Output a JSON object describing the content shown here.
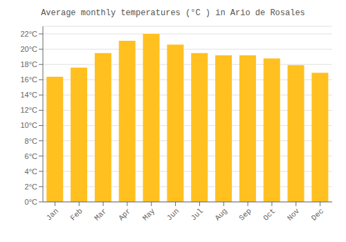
{
  "chart_data": {
    "type": "bar",
    "title": "Average monthly temperatures (°C ) in Ario de Rosales",
    "categories": [
      "Jan",
      "Feb",
      "Mar",
      "Apr",
      "May",
      "Jun",
      "Jul",
      "Aug",
      "Sep",
      "Oct",
      "Nov",
      "Dec"
    ],
    "values": [
      16.4,
      17.6,
      19.5,
      21.1,
      22.0,
      20.6,
      19.5,
      19.2,
      19.2,
      18.8,
      17.9,
      16.9
    ],
    "color": "#FFC020",
    "ylim": [
      0,
      23
    ],
    "yticks": [
      {
        "value": 0,
        "label": "0°C"
      },
      {
        "value": 2,
        "label": "2°C"
      },
      {
        "value": 4,
        "label": "4°C"
      },
      {
        "value": 6,
        "label": "6°C"
      },
      {
        "value": 8,
        "label": "8°C"
      },
      {
        "value": 10,
        "label": "10°C"
      },
      {
        "value": 12,
        "label": "12°C"
      },
      {
        "value": 14,
        "label": "14°C"
      },
      {
        "value": 16,
        "label": "16°C"
      },
      {
        "value": 18,
        "label": "18°C"
      },
      {
        "value": 20,
        "label": "20°C"
      },
      {
        "value": 22,
        "label": "22°C"
      }
    ],
    "grid": true
  }
}
